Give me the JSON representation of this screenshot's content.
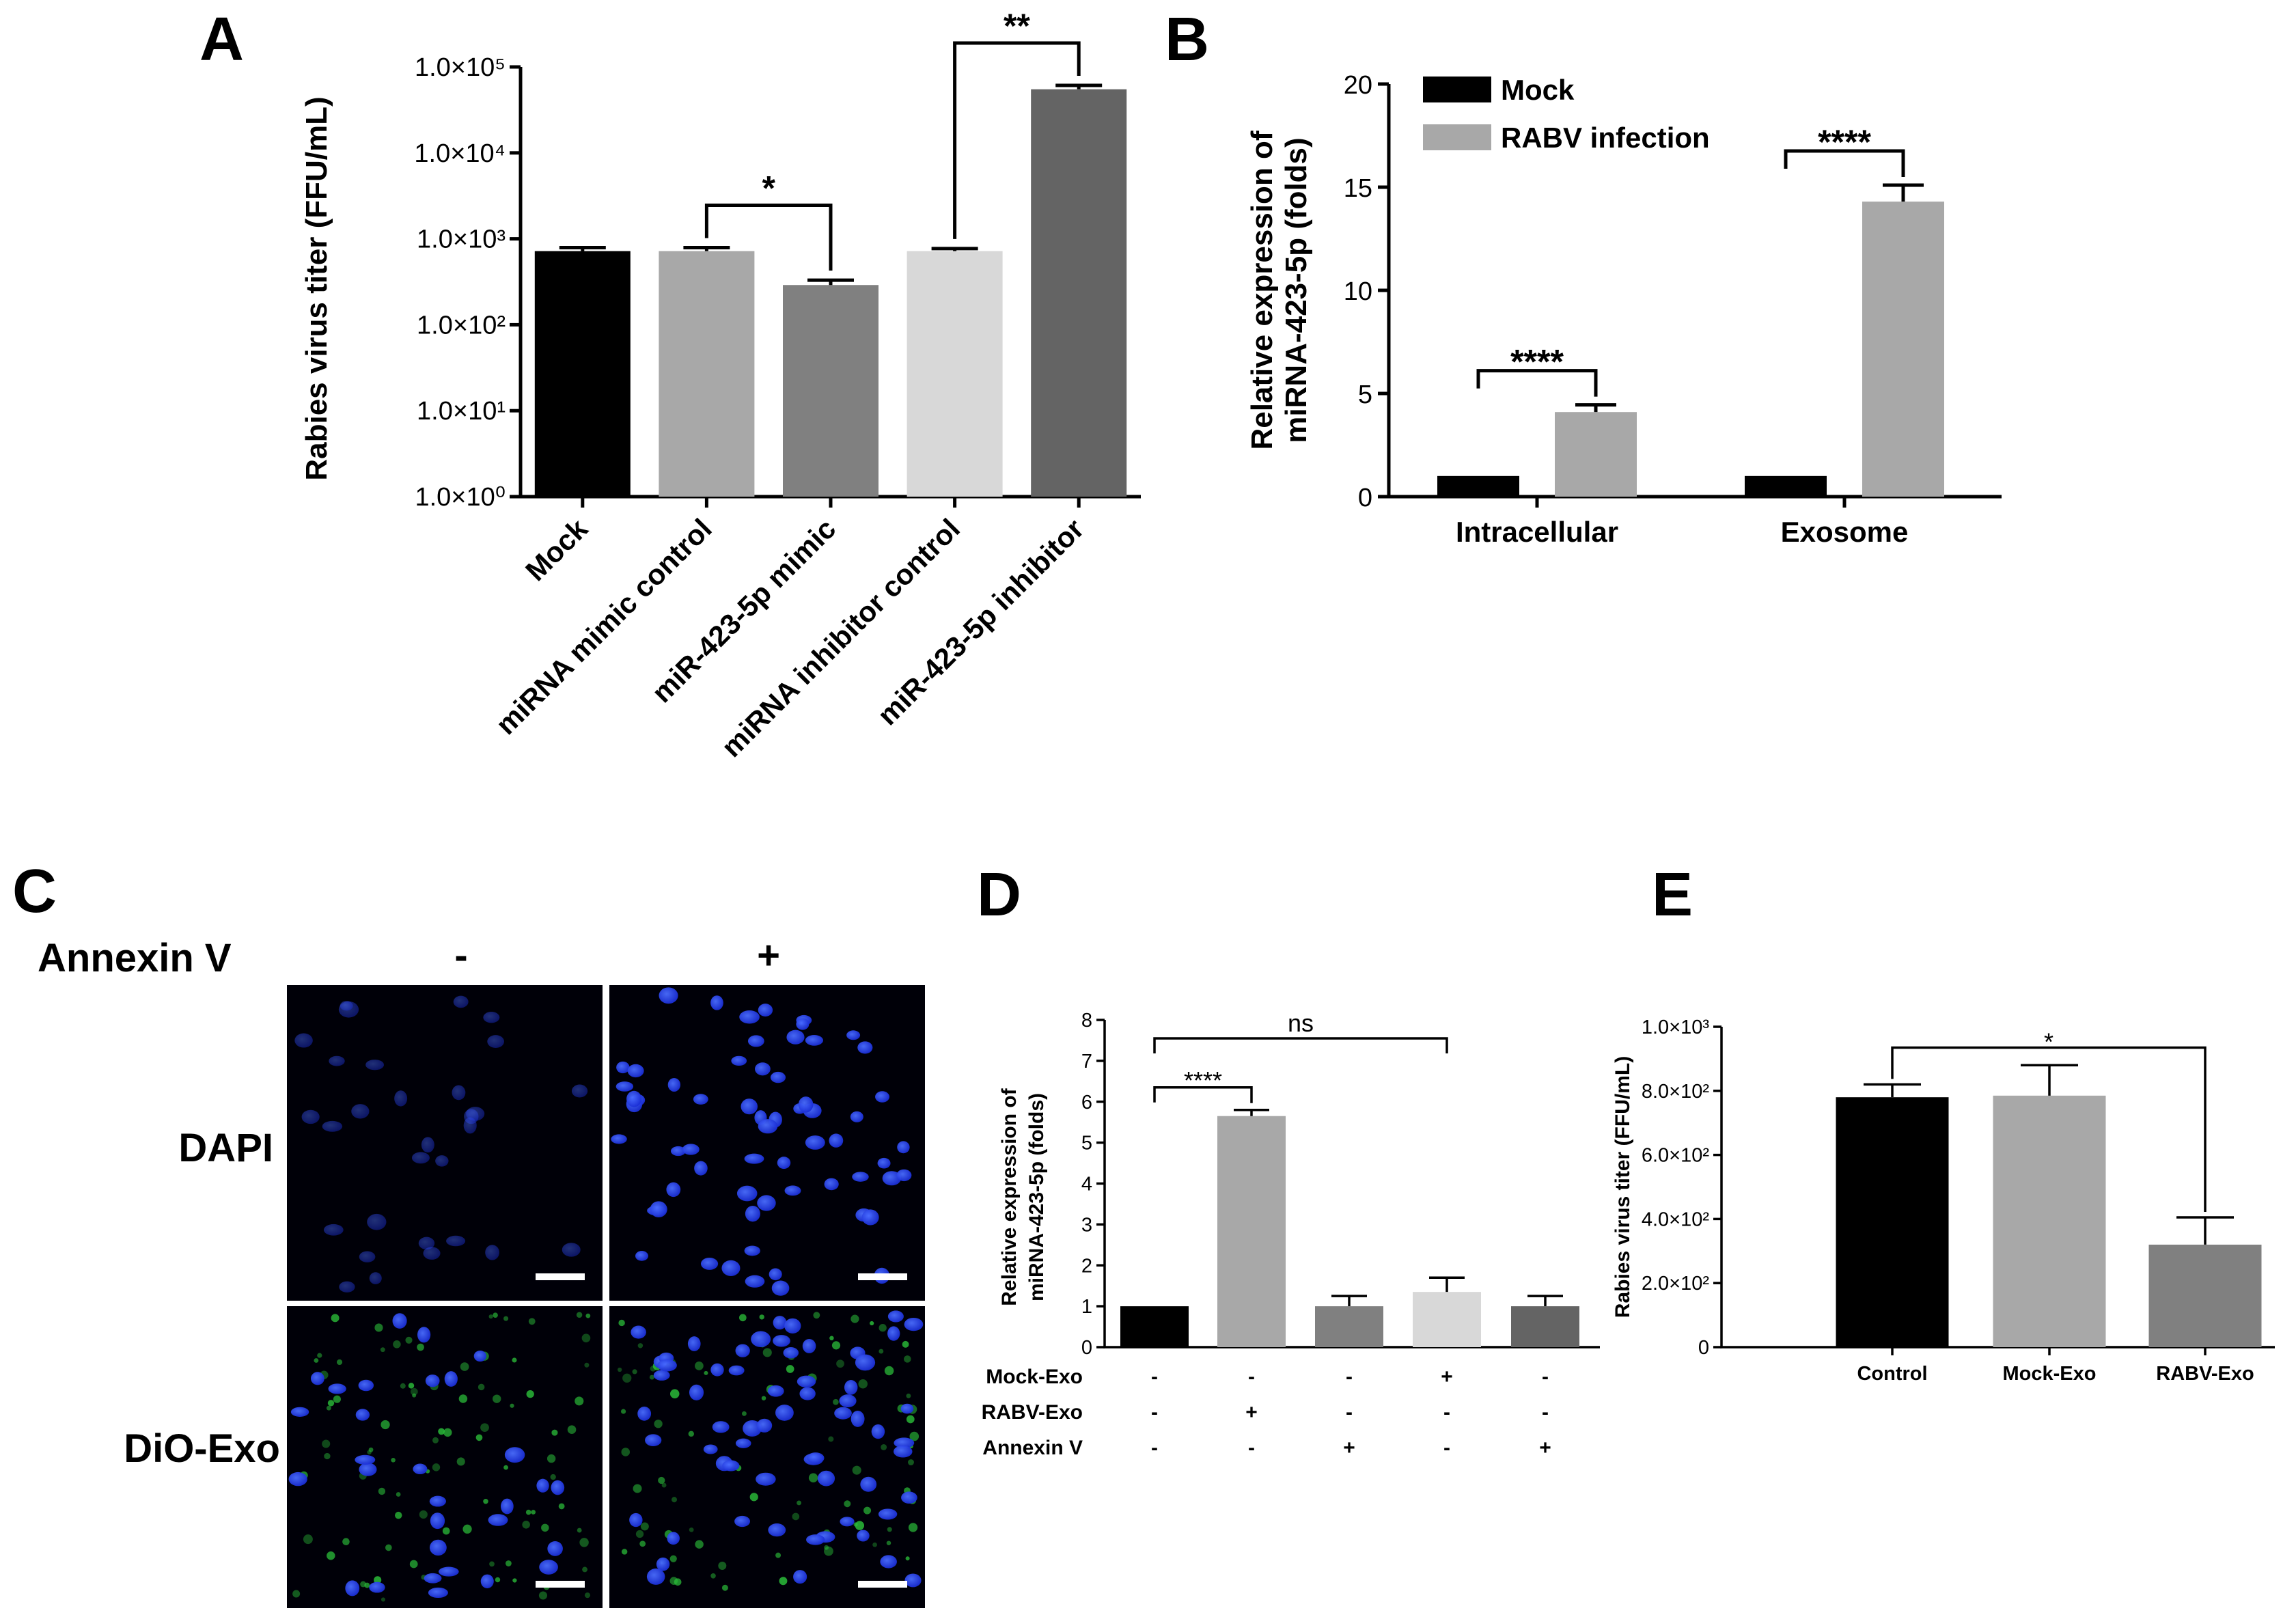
{
  "panels": {
    "A": "A",
    "B": "B",
    "C": "C",
    "D": "D",
    "E": "E"
  },
  "chart_data": [
    {
      "panel": "A",
      "type": "bar",
      "ylabel": "Rabies virus titer (FFU/mL)",
      "yscale": "log",
      "ylim": [
        1,
        100000
      ],
      "yticks": [
        "1.0×10⁰",
        "1.0×10¹",
        "1.0×10²",
        "1.0×10³",
        "1.0×10⁴",
        "1.0×10⁵"
      ],
      "categories": [
        "Mock",
        "miRNA mimic control",
        "miR-423-5p mimic",
        "miRNA inhibitor control",
        "miR-423-5p inhibitor"
      ],
      "values": [
        720,
        720,
        290,
        720,
        55000
      ],
      "errors": [
        70,
        70,
        40,
        50,
        6000
      ],
      "colors": [
        "#000000",
        "#a8a8a8",
        "#808080",
        "#d8d8d8",
        "#646464"
      ],
      "significance": [
        {
          "from": 1,
          "to": 2,
          "label": "*"
        },
        {
          "from": 3,
          "to": 4,
          "label": "**"
        }
      ]
    },
    {
      "panel": "B",
      "type": "bar",
      "ylabel_lines": [
        "Relative expression of",
        "miRNA-423-5p (folds)"
      ],
      "ylim": [
        0,
        20
      ],
      "yticks": [
        "0",
        "5",
        "10",
        "15",
        "20"
      ],
      "categories": [
        "Intracellular",
        "Exosome"
      ],
      "series": [
        {
          "name": "Mock",
          "color": "#000000",
          "values": [
            1.0,
            1.0
          ],
          "errors": [
            0,
            0
          ]
        },
        {
          "name": "RABV infection",
          "color": "#a8a8a8",
          "values": [
            4.1,
            14.3
          ],
          "errors": [
            0.35,
            0.8
          ]
        }
      ],
      "legend": "top-left",
      "significance": [
        {
          "category": 0,
          "label": "****"
        },
        {
          "category": 1,
          "label": "****"
        }
      ]
    },
    {
      "panel": "D",
      "type": "bar",
      "ylabel_lines": [
        "Relative expression of",
        "miRNA-423-5p (folds)"
      ],
      "ylim": [
        0,
        8
      ],
      "yticks": [
        "0",
        "1",
        "2",
        "3",
        "4",
        "5",
        "6",
        "7",
        "8"
      ],
      "values": [
        1.0,
        5.65,
        1.0,
        1.35,
        1.0
      ],
      "errors": [
        0,
        0.15,
        0.25,
        0.35,
        0.25
      ],
      "colors": [
        "#000000",
        "#a8a8a8",
        "#808080",
        "#d8d8d8",
        "#646464"
      ],
      "conditions": [
        {
          "label": "Mock-Exo",
          "marks": [
            "-",
            "-",
            "-",
            "+",
            "-"
          ]
        },
        {
          "label": "RABV-Exo",
          "marks": [
            "-",
            "+",
            "-",
            "-",
            "-"
          ]
        },
        {
          "label": "Annexin V",
          "marks": [
            "-",
            "-",
            "+",
            "-",
            "+"
          ]
        }
      ],
      "significance": [
        {
          "from": 0,
          "to": 1,
          "label": "****"
        },
        {
          "from": 0,
          "to": 3,
          "label": "ns"
        }
      ]
    },
    {
      "panel": "E",
      "type": "bar",
      "ylabel": "Rabies virus titer (FFU/mL)",
      "ylim": [
        0,
        1000
      ],
      "yticks": [
        "0",
        "2.0×10²",
        "4.0×10²",
        "6.0×10²",
        "8.0×10²",
        "1.0×10³"
      ],
      "categories": [
        "Control",
        "Mock-Exo",
        "RABV-Exo"
      ],
      "values": [
        780,
        785,
        320
      ],
      "errors": [
        40,
        95,
        85
      ],
      "colors": [
        "#000000",
        "#a8a8a8",
        "#808080"
      ],
      "significance": [
        {
          "from": 0,
          "to": 2,
          "label": "*"
        }
      ]
    }
  ],
  "panelC": {
    "treatment_label": "Annexin V",
    "columns": [
      "-",
      "+"
    ],
    "rows": [
      "DAPI",
      "DiO-Exo"
    ]
  }
}
